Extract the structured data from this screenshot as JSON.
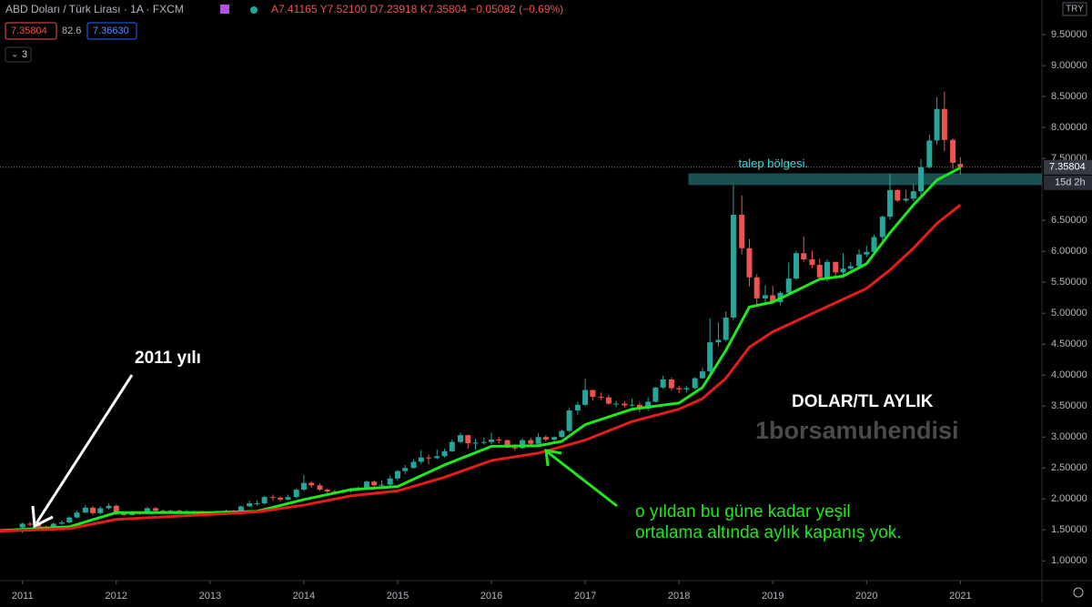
{
  "header": {
    "symbol": "ABD Doları / Türk Lirası · 1A · FXCM",
    "ohlc": "A7.41165 Y7.52100 D7.23918 K7.35804 −0.05082 (−0.69%)",
    "bid": "7.35804",
    "spread": "82.6",
    "ask": "7.36630",
    "collapse": "3",
    "currency": "TRY"
  },
  "chart_data": {
    "type": "candlestick",
    "x": [
      2011.0,
      2011.08,
      2011.17,
      2011.25,
      2011.33,
      2011.42,
      2011.5,
      2011.58,
      2011.67,
      2011.75,
      2011.83,
      2011.92,
      2012.0,
      2012.08,
      2012.17,
      2012.25,
      2012.33,
      2012.42,
      2012.5,
      2012.58,
      2012.67,
      2012.75,
      2012.83,
      2012.92,
      2013.0,
      2013.08,
      2013.17,
      2013.25,
      2013.33,
      2013.42,
      2013.5,
      2013.58,
      2013.67,
      2013.75,
      2013.83,
      2013.92,
      2014.0,
      2014.08,
      2014.17,
      2014.25,
      2014.33,
      2014.42,
      2014.5,
      2014.58,
      2014.67,
      2014.75,
      2014.83,
      2014.92,
      2015.0,
      2015.08,
      2015.17,
      2015.25,
      2015.33,
      2015.42,
      2015.5,
      2015.58,
      2015.67,
      2015.75,
      2015.83,
      2015.92,
      2016.0,
      2016.08,
      2016.17,
      2016.25,
      2016.33,
      2016.42,
      2016.5,
      2016.58,
      2016.67,
      2016.75,
      2016.83,
      2016.92,
      2017.0,
      2017.08,
      2017.17,
      2017.25,
      2017.33,
      2017.42,
      2017.5,
      2017.58,
      2017.67,
      2017.75,
      2017.83,
      2017.92,
      2018.0,
      2018.08,
      2018.17,
      2018.25,
      2018.33,
      2018.42,
      2018.5,
      2018.58,
      2018.67,
      2018.75,
      2018.83,
      2018.92,
      2019.0,
      2019.08,
      2019.17,
      2019.25,
      2019.33,
      2019.42,
      2019.5,
      2019.58,
      2019.67,
      2019.75,
      2019.83,
      2019.92,
      2020.0,
      2020.08,
      2020.17,
      2020.25,
      2020.33,
      2020.42,
      2020.5,
      2020.58,
      2020.67,
      2020.75,
      2020.83,
      2020.92,
      2021.0
    ],
    "open": [
      1.54,
      1.6,
      1.59,
      1.55,
      1.52,
      1.6,
      1.62,
      1.7,
      1.78,
      1.86,
      1.77,
      1.85,
      1.89,
      1.76,
      1.74,
      1.78,
      1.76,
      1.85,
      1.81,
      1.79,
      1.81,
      1.79,
      1.8,
      1.79,
      1.78,
      1.76,
      1.8,
      1.81,
      1.79,
      1.88,
      1.93,
      1.93,
      2.03,
      2.02,
      1.99,
      2.03,
      2.15,
      2.26,
      2.22,
      2.15,
      2.12,
      2.11,
      2.12,
      2.15,
      2.17,
      2.28,
      2.22,
      2.23,
      2.33,
      2.45,
      2.5,
      2.6,
      2.67,
      2.66,
      2.69,
      2.77,
      2.92,
      3.03,
      2.9,
      2.91,
      2.92,
      2.96,
      2.95,
      2.83,
      2.82,
      2.95,
      2.89,
      3.0,
      2.96,
      3.0,
      3.1,
      3.43,
      3.52,
      3.76,
      3.65,
      3.64,
      3.54,
      3.54,
      3.51,
      3.52,
      3.46,
      3.57,
      3.8,
      3.93,
      3.79,
      3.77,
      3.79,
      3.95,
      4.06,
      4.53,
      4.57,
      4.93,
      6.59,
      6.05,
      5.58,
      5.24,
      5.29,
      5.18,
      5.33,
      5.56,
      5.97,
      5.87,
      5.78,
      5.58,
      5.83,
      5.66,
      5.72,
      5.76,
      5.95,
      5.99,
      6.23,
      6.56,
      6.99,
      6.82,
      6.85,
      6.97,
      7.36,
      7.79,
      8.3,
      7.8,
      7.41165
    ],
    "high": [
      1.62,
      1.63,
      1.62,
      1.57,
      1.62,
      1.65,
      1.72,
      1.81,
      1.9,
      1.88,
      1.88,
      1.93,
      1.91,
      1.78,
      1.8,
      1.8,
      1.87,
      1.87,
      1.83,
      1.83,
      1.83,
      1.82,
      1.81,
      1.81,
      1.79,
      1.81,
      1.83,
      1.82,
      1.89,
      1.97,
      1.98,
      2.05,
      2.07,
      2.04,
      2.07,
      2.17,
      2.39,
      2.29,
      2.25,
      2.17,
      2.15,
      2.15,
      2.17,
      2.2,
      2.3,
      2.3,
      2.3,
      2.38,
      2.47,
      2.55,
      2.64,
      2.79,
      2.72,
      2.8,
      2.81,
      2.96,
      3.07,
      3.04,
      2.97,
      2.99,
      3.07,
      3.0,
      2.96,
      2.89,
      2.98,
      2.99,
      3.06,
      3.03,
      3.01,
      3.12,
      3.47,
      3.57,
      3.94,
      3.76,
      3.72,
      3.68,
      3.59,
      3.58,
      3.62,
      3.56,
      3.64,
      3.81,
      3.99,
      3.96,
      3.83,
      3.83,
      3.97,
      4.12,
      4.92,
      4.85,
      5.03,
      7.07,
      6.9,
      6.2,
      5.63,
      5.45,
      5.44,
      5.36,
      5.82,
      6.01,
      6.24,
      6.01,
      5.88,
      5.87,
      5.82,
      5.97,
      5.83,
      6.03,
      6.09,
      6.27,
      6.58,
      7.25,
      7.01,
      6.99,
      7.09,
      7.49,
      7.89,
      8.49,
      8.58,
      7.83,
      7.521
    ],
    "low": [
      1.45,
      1.56,
      1.53,
      1.5,
      1.51,
      1.58,
      1.61,
      1.69,
      1.77,
      1.74,
      1.75,
      1.83,
      1.74,
      1.72,
      1.73,
      1.74,
      1.75,
      1.78,
      1.77,
      1.77,
      1.77,
      1.77,
      1.77,
      1.77,
      1.74,
      1.75,
      1.79,
      1.77,
      1.78,
      1.87,
      1.89,
      1.91,
      1.97,
      1.96,
      1.98,
      2.01,
      2.13,
      2.18,
      2.13,
      2.09,
      2.07,
      2.08,
      2.1,
      2.14,
      2.15,
      2.2,
      2.2,
      2.21,
      2.3,
      2.4,
      2.49,
      2.56,
      2.56,
      2.64,
      2.67,
      2.76,
      2.9,
      2.81,
      2.79,
      2.88,
      2.88,
      2.9,
      2.82,
      2.78,
      2.81,
      2.86,
      2.87,
      2.93,
      2.93,
      2.98,
      3.08,
      3.36,
      3.5,
      3.59,
      3.6,
      3.52,
      3.48,
      3.47,
      3.49,
      3.4,
      3.42,
      3.56,
      3.78,
      3.75,
      3.71,
      3.72,
      3.77,
      3.94,
      4.02,
      4.46,
      4.54,
      4.89,
      5.95,
      5.43,
      5.14,
      5.17,
      5.15,
      5.13,
      5.28,
      5.54,
      5.83,
      5.73,
      5.54,
      5.51,
      5.59,
      5.62,
      5.69,
      5.75,
      5.91,
      5.93,
      6.16,
      6.51,
      6.8,
      6.79,
      6.81,
      6.86,
      7.34,
      7.72,
      7.62,
      7.33,
      7.23918
    ],
    "close": [
      1.6,
      1.59,
      1.55,
      1.52,
      1.6,
      1.62,
      1.7,
      1.78,
      1.86,
      1.77,
      1.85,
      1.89,
      1.76,
      1.74,
      1.78,
      1.76,
      1.85,
      1.81,
      1.79,
      1.81,
      1.79,
      1.8,
      1.79,
      1.78,
      1.76,
      1.8,
      1.81,
      1.79,
      1.88,
      1.93,
      1.93,
      2.03,
      2.02,
      1.99,
      2.03,
      2.15,
      2.26,
      2.22,
      2.15,
      2.12,
      2.11,
      2.12,
      2.15,
      2.17,
      2.28,
      2.22,
      2.23,
      2.33,
      2.45,
      2.5,
      2.6,
      2.67,
      2.66,
      2.69,
      2.77,
      2.92,
      3.03,
      2.9,
      2.91,
      2.92,
      2.96,
      2.95,
      2.83,
      2.82,
      2.95,
      2.89,
      3.0,
      2.96,
      3.0,
      3.1,
      3.43,
      3.52,
      3.76,
      3.65,
      3.64,
      3.54,
      3.54,
      3.51,
      3.52,
      3.46,
      3.57,
      3.8,
      3.93,
      3.79,
      3.77,
      3.79,
      3.95,
      4.06,
      4.53,
      4.57,
      4.93,
      6.59,
      6.05,
      5.58,
      5.24,
      5.29,
      5.18,
      5.33,
      5.56,
      5.97,
      5.87,
      5.78,
      5.58,
      5.83,
      5.66,
      5.72,
      5.76,
      5.95,
      5.99,
      6.23,
      6.56,
      6.99,
      6.82,
      6.85,
      6.97,
      7.36,
      7.79,
      8.3,
      7.8,
      7.43,
      7.35804
    ],
    "up_color": "#26a69a",
    "down_color": "#ef5350",
    "lines": [
      {
        "color": "#1ee81e",
        "x": [
          2010.76,
          2011.5,
          2012.0,
          2013.0,
          2013.5,
          2014.0,
          2014.5,
          2015.0,
          2015.5,
          2016.0,
          2016.5,
          2016.75,
          2017.0,
          2017.5,
          2018.0,
          2018.25,
          2018.5,
          2018.75,
          2019.0,
          2019.5,
          2019.75,
          2020.0,
          2020.25,
          2020.5,
          2020.75,
          2021.0
        ],
        "values": [
          1.49,
          1.55,
          1.78,
          1.78,
          1.8,
          1.99,
          2.15,
          2.2,
          2.55,
          2.85,
          2.86,
          2.93,
          3.2,
          3.45,
          3.55,
          3.8,
          4.4,
          5.1,
          5.18,
          5.55,
          5.6,
          5.8,
          6.3,
          6.75,
          7.15,
          7.35
        ]
      },
      {
        "color": "#e51c1c",
        "x": [
          2010.76,
          2011.5,
          2012.0,
          2013.0,
          2013.5,
          2014.0,
          2014.5,
          2015.0,
          2015.5,
          2016.0,
          2016.5,
          2017.0,
          2017.5,
          2018.0,
          2018.25,
          2018.5,
          2018.75,
          2019.0,
          2019.5,
          2020.0,
          2020.25,
          2020.5,
          2020.75,
          2021.0
        ],
        "values": [
          1.48,
          1.52,
          1.67,
          1.75,
          1.79,
          1.9,
          2.05,
          2.13,
          2.35,
          2.62,
          2.74,
          2.95,
          3.25,
          3.45,
          3.62,
          3.95,
          4.45,
          4.7,
          5.05,
          5.4,
          5.7,
          6.05,
          6.45,
          6.75
        ]
      }
    ],
    "zone": {
      "label": "talep bölgesi.",
      "x": 2018.1,
      "range": [
        7.07,
        7.26
      ],
      "color": "#1f5e5e"
    },
    "price_label": "7.35804",
    "countdown": "15d 2h",
    "xlim": [
      2010.76,
      2021.87
    ],
    "ylim": [
      0.71,
      10.06
    ],
    "xticks": [
      2011,
      2012,
      2013,
      2014,
      2015,
      2016,
      2017,
      2018,
      2019,
      2020,
      2021
    ],
    "yticks": [
      {
        "value": 9.5,
        "label": "9.50000"
      },
      {
        "value": 9.0,
        "label": "9.00000"
      },
      {
        "value": 8.5,
        "label": "8.50000"
      },
      {
        "value": 8.0,
        "label": "8.00000"
      },
      {
        "value": 7.5,
        "label": "7.50000"
      },
      {
        "value": 6.5,
        "label": "6.50000"
      },
      {
        "value": 6.0,
        "label": "6.00000"
      },
      {
        "value": 5.5,
        "label": "5.50000"
      },
      {
        "value": 5.0,
        "label": "5.00000"
      },
      {
        "value": 4.5,
        "label": "4.50000"
      },
      {
        "value": 4.0,
        "label": "4.00000"
      },
      {
        "value": 3.5,
        "label": "3.50000"
      },
      {
        "value": 3.0,
        "label": "3.00000"
      },
      {
        "value": 2.5,
        "label": "2.50000"
      },
      {
        "value": 2.0,
        "label": "2.00000"
      },
      {
        "value": 1.5,
        "label": "1.50000"
      },
      {
        "value": 1.0,
        "label": "1.00000"
      }
    ],
    "annotations": {
      "year": "2011 yılı",
      "title": "DOLAR/TL AYLIK",
      "watermark": "1borsamuhendisi",
      "note1": "o yıldan bu güne kadar yeşil",
      "note2": "ortalama altında aylık kapanış yok."
    }
  }
}
